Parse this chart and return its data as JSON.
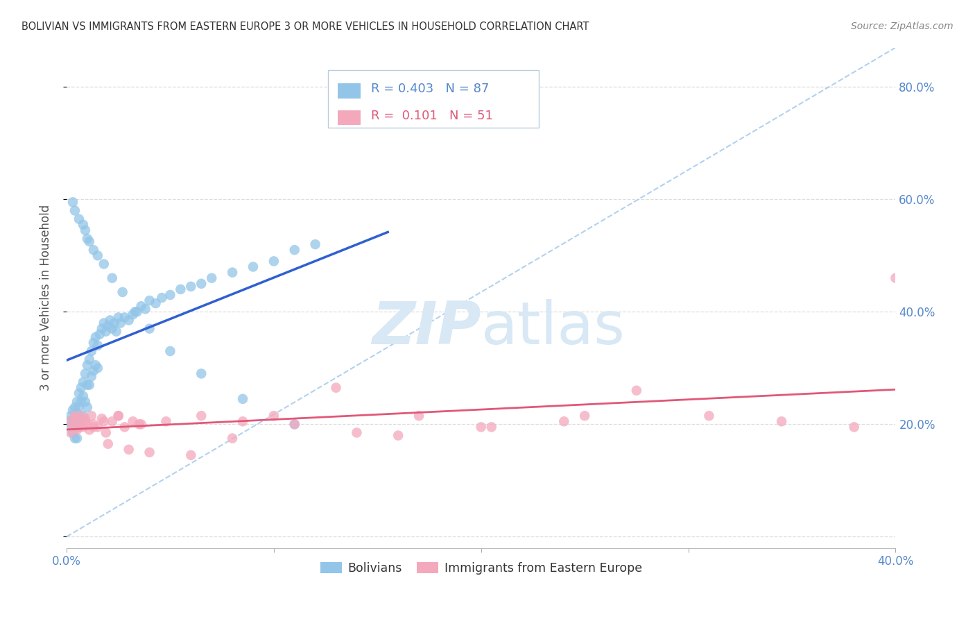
{
  "title": "BOLIVIAN VS IMMIGRANTS FROM EASTERN EUROPE 3 OR MORE VEHICLES IN HOUSEHOLD CORRELATION CHART",
  "source": "Source: ZipAtlas.com",
  "ylabel": "3 or more Vehicles in Household",
  "legend_label_1": "Bolivians",
  "legend_label_2": "Immigrants from Eastern Europe",
  "R1": 0.403,
  "N1": 87,
  "R2": 0.101,
  "N2": 51,
  "xlim": [
    0.0,
    0.4
  ],
  "ylim": [
    -0.02,
    0.87
  ],
  "color_blue": "#92C5E8",
  "color_pink": "#F4A8BC",
  "line_blue": "#3060D0",
  "line_pink": "#E05878",
  "line_diag_color": "#AACCEE",
  "watermark_color": "#D8E8F4",
  "title_color": "#333333",
  "axis_label_color": "#5588CC",
  "ylabel_color": "#555555",
  "grid_color": "#DDDDDD",
  "blue_x": [
    0.001,
    0.002,
    0.002,
    0.003,
    0.003,
    0.003,
    0.004,
    0.004,
    0.004,
    0.005,
    0.005,
    0.005,
    0.005,
    0.006,
    0.006,
    0.006,
    0.007,
    0.007,
    0.007,
    0.008,
    0.008,
    0.008,
    0.009,
    0.009,
    0.01,
    0.01,
    0.01,
    0.011,
    0.011,
    0.012,
    0.012,
    0.013,
    0.013,
    0.014,
    0.014,
    0.015,
    0.015,
    0.016,
    0.017,
    0.018,
    0.019,
    0.02,
    0.021,
    0.022,
    0.023,
    0.024,
    0.025,
    0.026,
    0.028,
    0.03,
    0.032,
    0.034,
    0.036,
    0.038,
    0.04,
    0.043,
    0.046,
    0.05,
    0.055,
    0.06,
    0.065,
    0.07,
    0.08,
    0.09,
    0.1,
    0.11,
    0.12,
    0.003,
    0.004,
    0.006,
    0.008,
    0.009,
    0.01,
    0.011,
    0.013,
    0.015,
    0.018,
    0.022,
    0.027,
    0.033,
    0.04,
    0.05,
    0.065,
    0.085,
    0.11
  ],
  "blue_y": [
    0.205,
    0.215,
    0.195,
    0.225,
    0.2,
    0.185,
    0.23,
    0.21,
    0.175,
    0.24,
    0.22,
    0.195,
    0.175,
    0.255,
    0.23,
    0.2,
    0.265,
    0.24,
    0.21,
    0.275,
    0.25,
    0.215,
    0.29,
    0.24,
    0.305,
    0.27,
    0.23,
    0.315,
    0.27,
    0.33,
    0.285,
    0.345,
    0.295,
    0.355,
    0.305,
    0.34,
    0.3,
    0.36,
    0.37,
    0.38,
    0.365,
    0.375,
    0.385,
    0.37,
    0.38,
    0.365,
    0.39,
    0.38,
    0.39,
    0.385,
    0.395,
    0.4,
    0.41,
    0.405,
    0.42,
    0.415,
    0.425,
    0.43,
    0.44,
    0.445,
    0.45,
    0.46,
    0.47,
    0.48,
    0.49,
    0.51,
    0.52,
    0.595,
    0.58,
    0.565,
    0.555,
    0.545,
    0.53,
    0.525,
    0.51,
    0.5,
    0.485,
    0.46,
    0.435,
    0.4,
    0.37,
    0.33,
    0.29,
    0.245,
    0.2
  ],
  "pink_x": [
    0.002,
    0.003,
    0.004,
    0.005,
    0.006,
    0.007,
    0.008,
    0.009,
    0.01,
    0.011,
    0.012,
    0.013,
    0.015,
    0.017,
    0.019,
    0.022,
    0.025,
    0.028,
    0.032,
    0.036,
    0.002,
    0.004,
    0.006,
    0.009,
    0.013,
    0.018,
    0.025,
    0.035,
    0.048,
    0.065,
    0.085,
    0.11,
    0.14,
    0.17,
    0.205,
    0.24,
    0.275,
    0.31,
    0.345,
    0.38,
    0.02,
    0.03,
    0.04,
    0.06,
    0.08,
    0.1,
    0.13,
    0.16,
    0.2,
    0.25,
    0.4
  ],
  "pink_y": [
    0.205,
    0.195,
    0.21,
    0.19,
    0.205,
    0.215,
    0.195,
    0.21,
    0.2,
    0.19,
    0.215,
    0.2,
    0.195,
    0.21,
    0.185,
    0.205,
    0.215,
    0.195,
    0.205,
    0.2,
    0.185,
    0.215,
    0.195,
    0.205,
    0.195,
    0.205,
    0.215,
    0.2,
    0.205,
    0.215,
    0.205,
    0.2,
    0.185,
    0.215,
    0.195,
    0.205,
    0.26,
    0.215,
    0.205,
    0.195,
    0.165,
    0.155,
    0.15,
    0.145,
    0.175,
    0.215,
    0.265,
    0.18,
    0.195,
    0.215,
    0.46
  ]
}
